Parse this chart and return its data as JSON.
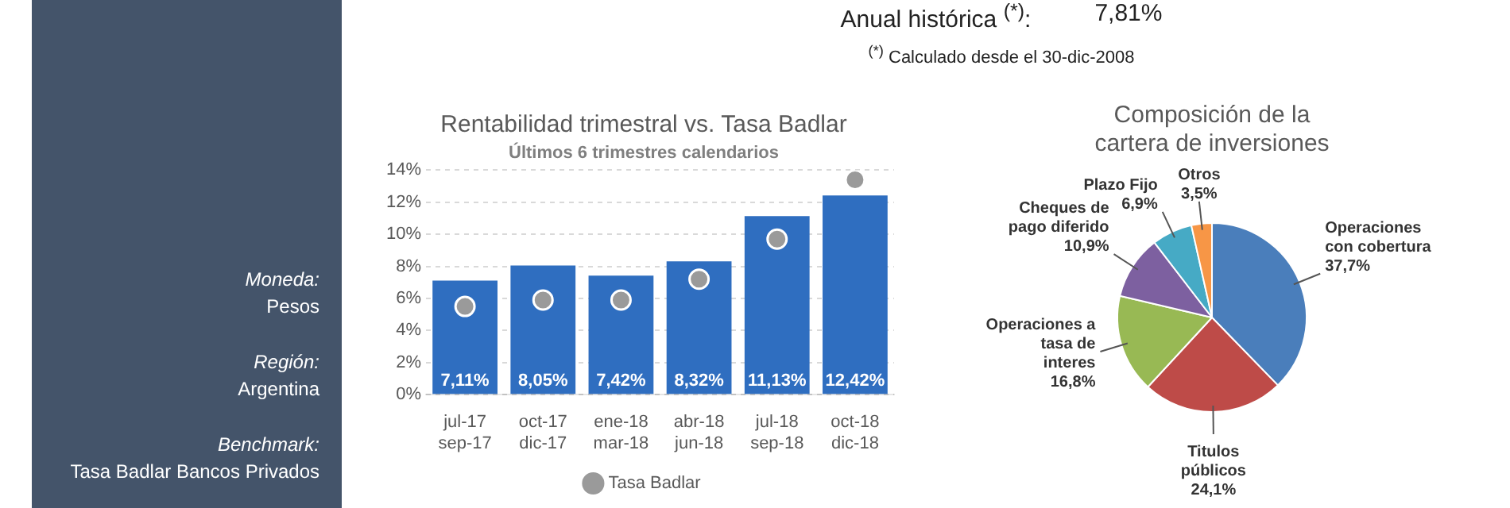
{
  "chart_data": [
    {
      "type": "other",
      "annotations": [
        "Moneda:",
        "Pesos",
        "Región:",
        "Argentina",
        "Benchmark:",
        "Tasa Badlar Bancos Privados"
      ]
    },
    {
      "type": "other",
      "annotations": [
        "Anual histórica $^{(*)}$:",
        "7,81%",
        "$^{(*)}$ Calculado desde el 30-dic-2008"
      ]
    },
    {
      "type": "bar",
      "title": "Rentabilidad trimestral vs. Tasa Badlar",
      "subtitle": "Últimos 6 trimestres calendarios",
      "categories": [
        "jul-17 sep-17",
        "oct-17 dic-17",
        "ene-18 mar-18",
        "abr-18 jun-18",
        "jul-18 sep-18",
        "oct-18 dic-18"
      ],
      "series": [
        {
          "type": "bar",
          "color": "#2f6ec0",
          "values": [
            7.11,
            8.05,
            7.42,
            8.32,
            11.13,
            12.42
          ],
          "value_labels": [
            "7,11%",
            "8,05%",
            "7,42%",
            "8,32%",
            "11,13%",
            "12,42%"
          ]
        },
        {
          "type": "scatter",
          "name": "Tasa Badlar",
          "color": "#9a9a9a",
          "x": [
            "jul-17 sep-17",
            "oct-17 dic-17",
            "ene-18 mar-18",
            "abr-18 jun-18",
            "jul-18 sep-18",
            "oct-18 dic-18"
          ],
          "values": [
            5.5,
            5.9,
            5.9,
            7.2,
            9.7,
            13.4
          ]
        }
      ],
      "ylim": [
        0,
        14
      ],
      "yticks": [
        {
          "value": 0,
          "label": "0%"
        },
        {
          "value": 2,
          "label": "2%"
        },
        {
          "value": 4,
          "label": "4%"
        },
        {
          "value": 6,
          "label": "6%"
        },
        {
          "value": 8,
          "label": "8%"
        },
        {
          "value": 10,
          "label": "10%"
        },
        {
          "value": 12,
          "label": "12%"
        },
        {
          "value": 14,
          "label": "14%"
        }
      ],
      "grid": "y",
      "legend": "bottom",
      "marker": "circle"
    },
    {
      "type": "pie",
      "title": "Composición de la cartera de inversiones",
      "categories": [
        "Operaciones con cobertura",
        "Titulos públicos",
        "Operaciones a tasa de interes",
        "Cheques de pago diferido",
        "Plazo Fijo",
        "Otros"
      ],
      "values": [
        37.7,
        24.1,
        16.8,
        10.9,
        6.9,
        3.5
      ],
      "value_labels": [
        "37,7%",
        "24,1%",
        "16,8%",
        "10,9%",
        "6,9%",
        "3,5%"
      ],
      "colors": [
        "#4a7ebb",
        "#be4b48",
        "#98b954",
        "#7d60a0",
        "#46aac5",
        "#f79646"
      ],
      "legend": false
    }
  ]
}
